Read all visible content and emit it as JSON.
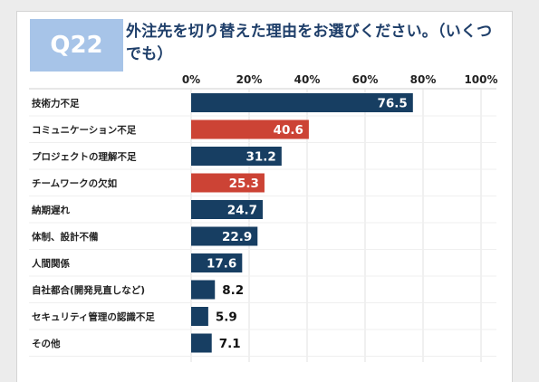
{
  "question": {
    "number": "Q22",
    "text": "外注先を切り替えた理由をお選びください。（いくつでも）"
  },
  "colors": {
    "primary_bar": "#173e62",
    "highlight_bar": "#cc4335",
    "question_text": "#1f3f6a",
    "badge_bg": "#a7c4e8"
  },
  "chart_data": {
    "type": "bar",
    "orientation": "horizontal",
    "title": "",
    "xlabel": "",
    "ylabel": "",
    "xlim": [
      0,
      100
    ],
    "ticks": [
      "0%",
      "20%",
      "40%",
      "60%",
      "80%",
      "100%"
    ],
    "tick_values": [
      0,
      20,
      40,
      60,
      80,
      100
    ],
    "grid": true,
    "categories": [
      "技術力不足",
      "コミュニケーション不足",
      "プロジェクトの理解不足",
      "チームワークの欠如",
      "納期遅れ",
      "体制、設計不備",
      "人間関係",
      "自社都合(開発見直しなど)",
      "セキュリティ管理の認識不足",
      "その他"
    ],
    "values": [
      76.5,
      40.6,
      31.2,
      25.3,
      24.7,
      22.9,
      17.6,
      8.2,
      5.9,
      7.1
    ],
    "value_labels": [
      "76.5",
      "40.6",
      "31.2",
      "25.3",
      "24.7",
      "22.9",
      "17.6",
      "8.2",
      "5.9",
      "7.1"
    ],
    "highlighted": [
      false,
      true,
      false,
      true,
      false,
      false,
      false,
      false,
      false,
      false
    ]
  }
}
